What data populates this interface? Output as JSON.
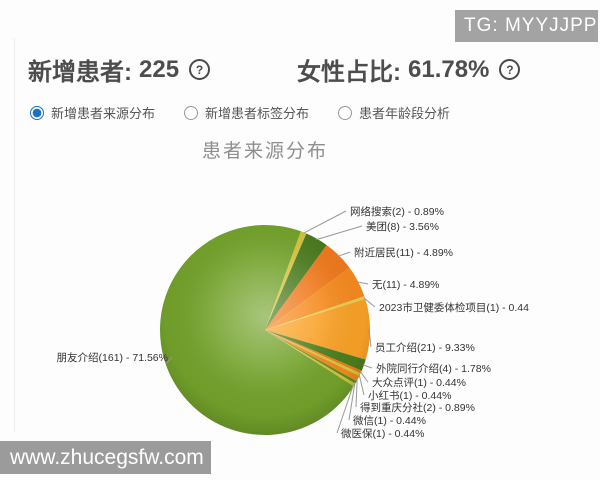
{
  "tg_badge": "TG: MYYJJPP",
  "watermark": "www.zhucegsfw.com",
  "metrics": {
    "help_icon": "?",
    "new_patients": {
      "label": "新增患者:",
      "value": "225"
    },
    "female_ratio": {
      "label": "女性占比:",
      "value": "61.78%"
    }
  },
  "tabs": [
    {
      "label": "新增患者来源分布",
      "selected": true
    },
    {
      "label": "新增患者标签分布",
      "selected": false
    },
    {
      "label": "患者年龄段分析",
      "selected": false
    }
  ],
  "chart_data": {
    "type": "pie",
    "title": "患者来源分布",
    "total": 225,
    "legend_position": "none",
    "label_style": "outside with leader lines, format name(count) - pct%",
    "slices": [
      {
        "name": "网络搜索",
        "count": 2,
        "pct": 0.89,
        "color": "#d7c33c",
        "label": "网络搜索(2) - 0.89%"
      },
      {
        "name": "美团",
        "count": 8,
        "pct": 3.56,
        "color": "#4a7a1d",
        "label": "美团(8) - 3.56%"
      },
      {
        "name": "附近居民",
        "count": 11,
        "pct": 4.89,
        "color": "#f0791b",
        "label": "附近居民(11) - 4.89%"
      },
      {
        "name": "无",
        "count": 11,
        "pct": 4.89,
        "color": "#f68a1f",
        "label": "无(11) - 4.89%"
      },
      {
        "name": "2023市卫健委体检项目",
        "count": 1,
        "pct": 0.44,
        "color": "#e5cf4d",
        "label": "2023市卫健委体检项目(1) - 0.44"
      },
      {
        "name": "员工介绍",
        "count": 21,
        "pct": 9.33,
        "color": "#f9a127",
        "label": "员工介绍(21) - 9.33%"
      },
      {
        "name": "外院同行介绍",
        "count": 4,
        "pct": 1.78,
        "color": "#4c7d1e",
        "label": "外院同行介绍(4) - 1.78%"
      },
      {
        "name": "大众点评",
        "count": 1,
        "pct": 0.44,
        "color": "#ee7d16",
        "label": "大众点评(1) - 0.44%"
      },
      {
        "name": "小红书",
        "count": 1,
        "pct": 0.44,
        "color": "#d9c73a",
        "label": "小红书(1) - 0.44%"
      },
      {
        "name": "得到重庆分社",
        "count": 2,
        "pct": 0.89,
        "color": "#f18a1d",
        "label": "得到重庆分社(2) - 0.89%"
      },
      {
        "name": "微信",
        "count": 1,
        "pct": 0.44,
        "color": "#5e8d20",
        "label": "微信(1) - 0.44%"
      },
      {
        "name": "微医保",
        "count": 1,
        "pct": 0.44,
        "color": "#d5c338",
        "label": "微医保(1) - 0.44%"
      },
      {
        "name": "朋友介绍",
        "count": 161,
        "pct": 71.56,
        "color": "#73a22b",
        "label": "朋友介绍(161) - 71.56%"
      }
    ]
  }
}
